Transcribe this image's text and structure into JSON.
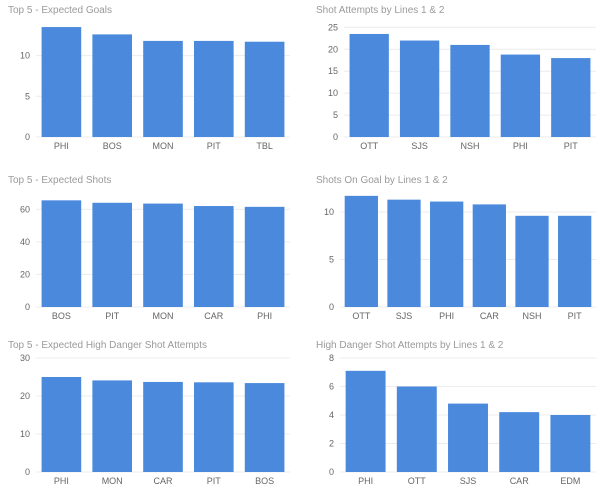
{
  "colors": {
    "bar": "#4a89dc",
    "grid": "#ececec",
    "tick": "#666666",
    "title": "#9a9a9a"
  },
  "chart_data": [
    {
      "type": "bar",
      "title": "Top 5 - Expected Goals",
      "categories": [
        "PHI",
        "BOS",
        "MON",
        "PIT",
        "TBL"
      ],
      "values": [
        13.5,
        12.6,
        11.8,
        11.8,
        11.7
      ],
      "yticks": [
        0,
        5,
        10
      ],
      "ylim": [
        0,
        14
      ],
      "grid": true
    },
    {
      "type": "bar",
      "title": "Shot Attempts by Lines 1 & 2",
      "categories": [
        "OTT",
        "SJS",
        "NSH",
        "PHI",
        "PIT"
      ],
      "values": [
        23.5,
        22.0,
        21.0,
        18.8,
        18.0
      ],
      "yticks": [
        0,
        5,
        10,
        15,
        20,
        25
      ],
      "ylim": [
        0,
        26
      ],
      "grid": true
    },
    {
      "type": "bar",
      "title": "Top 5 - Expected Shots",
      "categories": [
        "BOS",
        "PIT",
        "MON",
        "CAR",
        "PHI"
      ],
      "values": [
        65.5,
        64.0,
        63.5,
        62.0,
        61.5
      ],
      "yticks": [
        0,
        20,
        40,
        60
      ],
      "ylim": [
        0,
        70
      ],
      "grid": true
    },
    {
      "type": "bar",
      "title": "Shots On Goal by Lines 1 & 2",
      "categories": [
        "OTT",
        "SJS",
        "PHI",
        "CAR",
        "NSH",
        "PIT"
      ],
      "values": [
        11.7,
        11.3,
        11.1,
        10.8,
        9.6,
        9.6
      ],
      "yticks": [
        0,
        5,
        10
      ],
      "ylim": [
        0,
        12
      ],
      "grid": true
    },
    {
      "type": "bar",
      "title": "Top 5 - Expected High Danger Shot Attempts",
      "categories": [
        "PHI",
        "MON",
        "CAR",
        "PIT",
        "BOS"
      ],
      "values": [
        25.0,
        24.1,
        23.7,
        23.6,
        23.4
      ],
      "yticks": [
        0,
        10,
        20,
        30
      ],
      "ylim": [
        0,
        30
      ],
      "grid": true
    },
    {
      "type": "bar",
      "title": "High Danger Shot Attempts by Lines 1 & 2",
      "categories": [
        "PHI",
        "OTT",
        "SJS",
        "CAR",
        "EDM"
      ],
      "values": [
        7.1,
        6.0,
        4.8,
        4.2,
        4.0
      ],
      "yticks": [
        0,
        2,
        4,
        6,
        8
      ],
      "ylim": [
        0,
        8
      ],
      "grid": true
    }
  ]
}
